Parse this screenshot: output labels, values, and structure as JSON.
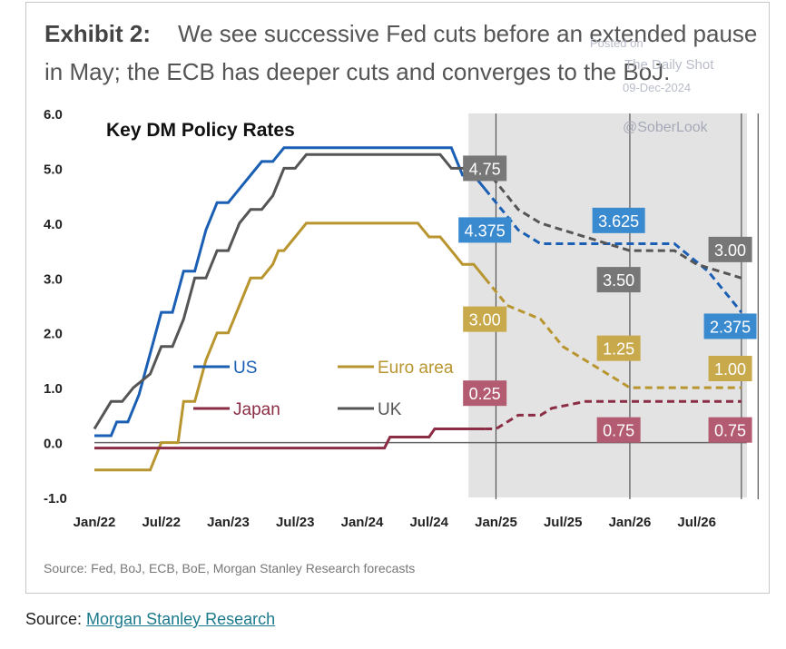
{
  "exhibit": {
    "label": "Exhibit 2:",
    "headline_line1": "We see successive Fed cuts before an extended pause",
    "headline_line2": "in May; the ECB has deeper cuts and converges to the BoJ."
  },
  "watermark": {
    "line1": "Posted on",
    "line2": "The Daily Shot",
    "line3": "09-Dec-2024",
    "handle": "@SoberLook"
  },
  "chart_data": {
    "type": "line",
    "title": "Key DM Policy Rates",
    "xlabel": "",
    "ylabel": "",
    "ylim": [
      -1.0,
      6.0
    ],
    "xlim": [
      0,
      58.5
    ],
    "x_tick_labels": [
      "Jan/22",
      "Jul/22",
      "Jan/23",
      "Jul/23",
      "Jan/24",
      "Jul/24",
      "Jan/25",
      "Jul/25",
      "Jan/26",
      "Jul/26"
    ],
    "y_tick_labels": [
      "6.0",
      "5.0",
      "4.0",
      "3.0",
      "2.0",
      "1.0",
      "0.0",
      "-1.0"
    ],
    "forecast_start": 35.0,
    "forecast_end": 58.5,
    "x_axis_note": "x in months since Jan 2022",
    "series": [
      {
        "name": "US",
        "color": "#1a5fb4",
        "actual": [
          [
            0,
            0.125
          ],
          [
            1.5,
            0.125
          ],
          [
            2,
            0.375
          ],
          [
            3,
            0.375
          ],
          [
            4,
            0.875
          ],
          [
            5,
            1.625
          ],
          [
            6,
            2.375
          ],
          [
            7,
            2.375
          ],
          [
            8,
            3.125
          ],
          [
            9,
            3.125
          ],
          [
            10,
            3.875
          ],
          [
            11,
            4.375
          ],
          [
            12,
            4.375
          ],
          [
            13,
            4.625
          ],
          [
            14,
            4.875
          ],
          [
            15,
            5.125
          ],
          [
            16,
            5.125
          ],
          [
            17,
            5.375
          ],
          [
            19,
            5.375
          ],
          [
            32,
            5.375
          ],
          [
            33,
            4.875
          ],
          [
            34,
            4.875
          ],
          [
            35,
            4.625
          ]
        ],
        "forecast": [
          [
            35,
            4.625
          ],
          [
            36,
            4.375
          ],
          [
            37,
            4.125
          ],
          [
            38,
            3.875
          ],
          [
            40,
            3.625
          ],
          [
            50,
            3.625
          ],
          [
            52,
            3.625
          ],
          [
            55,
            3.125
          ],
          [
            57,
            2.625
          ],
          [
            58,
            2.375
          ]
        ]
      },
      {
        "name": "UK",
        "color": "#555555",
        "actual": [
          [
            0,
            0.25
          ],
          [
            1.5,
            0.75
          ],
          [
            2.5,
            0.75
          ],
          [
            3.5,
            1.0
          ],
          [
            5,
            1.25
          ],
          [
            6,
            1.75
          ],
          [
            7,
            1.75
          ],
          [
            8,
            2.25
          ],
          [
            9,
            3.0
          ],
          [
            10,
            3.0
          ],
          [
            11,
            3.5
          ],
          [
            12,
            3.5
          ],
          [
            13,
            4.0
          ],
          [
            14,
            4.25
          ],
          [
            15,
            4.25
          ],
          [
            16,
            4.5
          ],
          [
            17,
            5.0
          ],
          [
            18,
            5.0
          ],
          [
            19,
            5.25
          ],
          [
            31,
            5.25
          ],
          [
            32,
            5.0
          ],
          [
            35,
            5.0
          ]
        ],
        "forecast": [
          [
            35,
            5.0
          ],
          [
            36,
            4.75
          ],
          [
            37,
            4.5
          ],
          [
            38,
            4.25
          ],
          [
            40,
            4.0
          ],
          [
            44,
            3.75
          ],
          [
            48,
            3.5
          ],
          [
            52,
            3.5
          ],
          [
            54,
            3.25
          ],
          [
            58,
            3.0
          ]
        ]
      },
      {
        "name": "Euro area",
        "color": "#b8952e",
        "actual": [
          [
            0,
            -0.5
          ],
          [
            4,
            -0.5
          ],
          [
            5,
            -0.5
          ],
          [
            6,
            0.0
          ],
          [
            7,
            0.0
          ],
          [
            7.5,
            0.0
          ],
          [
            8,
            0.75
          ],
          [
            8.5,
            0.75
          ],
          [
            9,
            0.75
          ],
          [
            10,
            1.5
          ],
          [
            11,
            2.0
          ],
          [
            12,
            2.0
          ],
          [
            13,
            2.5
          ],
          [
            14,
            3.0
          ],
          [
            15,
            3.0
          ],
          [
            16,
            3.25
          ],
          [
            16.5,
            3.5
          ],
          [
            17,
            3.5
          ],
          [
            18,
            3.75
          ],
          [
            19,
            4.0
          ],
          [
            29,
            4.0
          ],
          [
            30,
            3.75
          ],
          [
            31,
            3.75
          ],
          [
            32,
            3.5
          ],
          [
            33,
            3.25
          ],
          [
            34,
            3.25
          ],
          [
            35,
            3.0
          ]
        ],
        "forecast": [
          [
            35,
            3.0
          ],
          [
            36,
            2.75
          ],
          [
            37,
            2.5
          ],
          [
            40,
            2.25
          ],
          [
            42,
            1.75
          ],
          [
            44,
            1.5
          ],
          [
            46,
            1.25
          ],
          [
            48,
            1.0
          ],
          [
            58,
            1.0
          ]
        ]
      },
      {
        "name": "Japan",
        "color": "#8b2d45",
        "actual": [
          [
            0,
            -0.1
          ],
          [
            26,
            -0.1
          ],
          [
            26.5,
            0.1
          ],
          [
            30,
            0.1
          ],
          [
            30.5,
            0.25
          ],
          [
            35,
            0.25
          ]
        ],
        "forecast": [
          [
            35,
            0.25
          ],
          [
            36,
            0.25
          ],
          [
            37,
            0.375
          ],
          [
            38,
            0.5
          ],
          [
            40,
            0.5
          ],
          [
            41,
            0.625
          ],
          [
            44,
            0.75
          ],
          [
            58,
            0.75
          ]
        ]
      }
    ],
    "legend": [
      {
        "name": "US",
        "color": "#1a5fb4",
        "label": "US"
      },
      {
        "name": "Euro area",
        "color": "#b8952e",
        "label": "Euro area"
      },
      {
        "name": "Japan",
        "color": "#8b2d45",
        "label": "Japan"
      },
      {
        "name": "UK",
        "color": "#555555",
        "label": "UK"
      }
    ],
    "data_labels": [
      {
        "text": "4.75",
        "x": 35.0,
        "y": 5.0,
        "color": "#777777"
      },
      {
        "text": "4.375",
        "x": 35.0,
        "y": 3.875,
        "color": "#3a8ad0"
      },
      {
        "text": "3.00",
        "x": 35.0,
        "y": 2.25,
        "color": "#c8aa4c"
      },
      {
        "text": "0.25",
        "x": 35.0,
        "y": 0.9,
        "color": "#b35b70"
      },
      {
        "text": "3.625",
        "x": 47.0,
        "y": 4.05,
        "color": "#3a8ad0"
      },
      {
        "text": "3.50",
        "x": 47.0,
        "y": 2.97,
        "color": "#777777"
      },
      {
        "text": "1.25",
        "x": 47.0,
        "y": 1.72,
        "color": "#c8aa4c"
      },
      {
        "text": "0.75",
        "x": 47.0,
        "y": 0.23,
        "color": "#b35b70"
      },
      {
        "text": "3.00",
        "x": 57.0,
        "y": 3.52,
        "color": "#777777"
      },
      {
        "text": "2.375",
        "x": 57.0,
        "y": 2.12,
        "color": "#3a8ad0"
      },
      {
        "text": "1.00",
        "x": 57.0,
        "y": 1.35,
        "color": "#c8aa4c"
      },
      {
        "text": "0.75",
        "x": 57.0,
        "y": 0.23,
        "color": "#b35b70"
      }
    ]
  },
  "sources": {
    "chart_source": "Source: Fed, BoJ, ECB, BoE, Morgan Stanley Research forecasts",
    "footer_prefix": "Source: ",
    "footer_link": "Morgan Stanley Research"
  }
}
